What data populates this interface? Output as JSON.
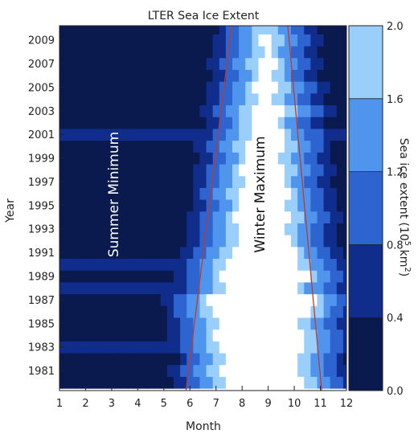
{
  "chart_data": {
    "type": "heatmap",
    "title": "LTER Sea Ice Extent",
    "xlabel": "Month",
    "ylabel": "Year",
    "x_ticks": [
      "1",
      "2",
      "3",
      "4",
      "5",
      "6",
      "7",
      "8",
      "9",
      "10",
      "11",
      "12"
    ],
    "y_ticks": [
      "1981",
      "1983",
      "1985",
      "1987",
      "1989",
      "1991",
      "1993",
      "1995",
      "1997",
      "1999",
      "2001",
      "2003",
      "2005",
      "2007",
      "2009"
    ],
    "xlim": [
      1,
      12
    ],
    "ylim": [
      1979.3,
      2010.2
    ],
    "colorbar": {
      "label": "Sea ice extent (10",
      "label_sup": "5",
      "label_unit": " km",
      "label_sup2": "2",
      "label_end": ")",
      "ticks": [
        "0.0",
        "0.4",
        "0.8",
        "1.2",
        "1.6",
        "2.0"
      ],
      "levels": [
        0.0,
        0.4,
        0.8,
        1.2,
        1.6,
        2.0
      ],
      "colors": [
        "#0a1a4e",
        "#112d8c",
        "#2d64d0",
        "#4f95ee",
        "#9bcffb"
      ]
    },
    "annotations": {
      "summer": "Summer Minimum",
      "winter": "Winter Maximum"
    },
    "trend_lines": [
      {
        "name": "advance",
        "x_start": 5.85,
        "y_start": 1979.3,
        "x_end": 7.6,
        "y_end": 2010.2
      },
      {
        "name": "retreat",
        "x_start": 11.05,
        "y_start": 1979.3,
        "x_end": 9.75,
        "y_end": 2010.2
      }
    ],
    "trend_color": "#c0392b",
    "year_profiles": [
      {
        "year": 1980,
        "start": 6.3,
        "end": 11.4,
        "lower": 1.0
      },
      {
        "year": 1981,
        "start": 6.1,
        "end": 11.2,
        "lower": 1.1
      },
      {
        "year": 1982,
        "start": 6.4,
        "end": 11.1,
        "lower": 0.9
      },
      {
        "year": 1983,
        "start": 6.2,
        "end": 11.3,
        "lower": 1.2
      },
      {
        "year": 1984,
        "start": 6.0,
        "end": 11.4,
        "lower": 0.8
      },
      {
        "year": 1985,
        "start": 6.1,
        "end": 11.2,
        "lower": 1.1
      },
      {
        "year": 1986,
        "start": 5.8,
        "end": 11.6,
        "lower": 0.6
      },
      {
        "year": 1987,
        "start": 5.7,
        "end": 11.8,
        "lower": 0.8
      },
      {
        "year": 1988,
        "start": 6.3,
        "end": 11.0,
        "lower": 1.3
      },
      {
        "year": 1989,
        "start": 6.2,
        "end": 11.5,
        "lower": 1.0
      },
      {
        "year": 1990,
        "start": 6.4,
        "end": 11.2,
        "lower": 1.2
      },
      {
        "year": 1991,
        "start": 6.6,
        "end": 11.0,
        "lower": 1.0
      },
      {
        "year": 1992,
        "start": 6.8,
        "end": 10.8,
        "lower": 0.9
      },
      {
        "year": 1993,
        "start": 6.9,
        "end": 10.7,
        "lower": 1.1
      },
      {
        "year": 1994,
        "start": 6.7,
        "end": 10.9,
        "lower": 0.8
      },
      {
        "year": 1995,
        "start": 7.0,
        "end": 10.6,
        "lower": 1.0
      },
      {
        "year": 1996,
        "start": 6.9,
        "end": 10.8,
        "lower": 0.9
      },
      {
        "year": 1997,
        "start": 7.1,
        "end": 10.5,
        "lower": 1.1
      },
      {
        "year": 1998,
        "start": 7.0,
        "end": 10.7,
        "lower": 0.7
      },
      {
        "year": 1999,
        "start": 7.2,
        "end": 10.4,
        "lower": 1.0
      },
      {
        "year": 2000,
        "start": 7.1,
        "end": 10.6,
        "lower": 0.9
      },
      {
        "year": 2001,
        "start": 7.3,
        "end": 10.5,
        "lower": 1.2
      },
      {
        "year": 2002,
        "start": 7.4,
        "end": 10.3,
        "lower": 0.8
      },
      {
        "year": 2003,
        "start": 7.3,
        "end": 10.6,
        "lower": 1.0
      },
      {
        "year": 2004,
        "start": 7.6,
        "end": 10.2,
        "lower": 0.9
      },
      {
        "year": 2005,
        "start": 7.5,
        "end": 10.4,
        "lower": 1.1
      },
      {
        "year": 2006,
        "start": 7.7,
        "end": 10.1,
        "lower": 0.8
      },
      {
        "year": 2007,
        "start": 7.6,
        "end": 10.3,
        "lower": 1.0
      },
      {
        "year": 2008,
        "start": 7.8,
        "end": 10.0,
        "lower": 0.9
      },
      {
        "year": 2009,
        "start": 7.7,
        "end": 10.2,
        "lower": 1.0
      },
      {
        "year": 2010,
        "start": 7.9,
        "end": 9.9,
        "lower": 0.9
      }
    ]
  }
}
